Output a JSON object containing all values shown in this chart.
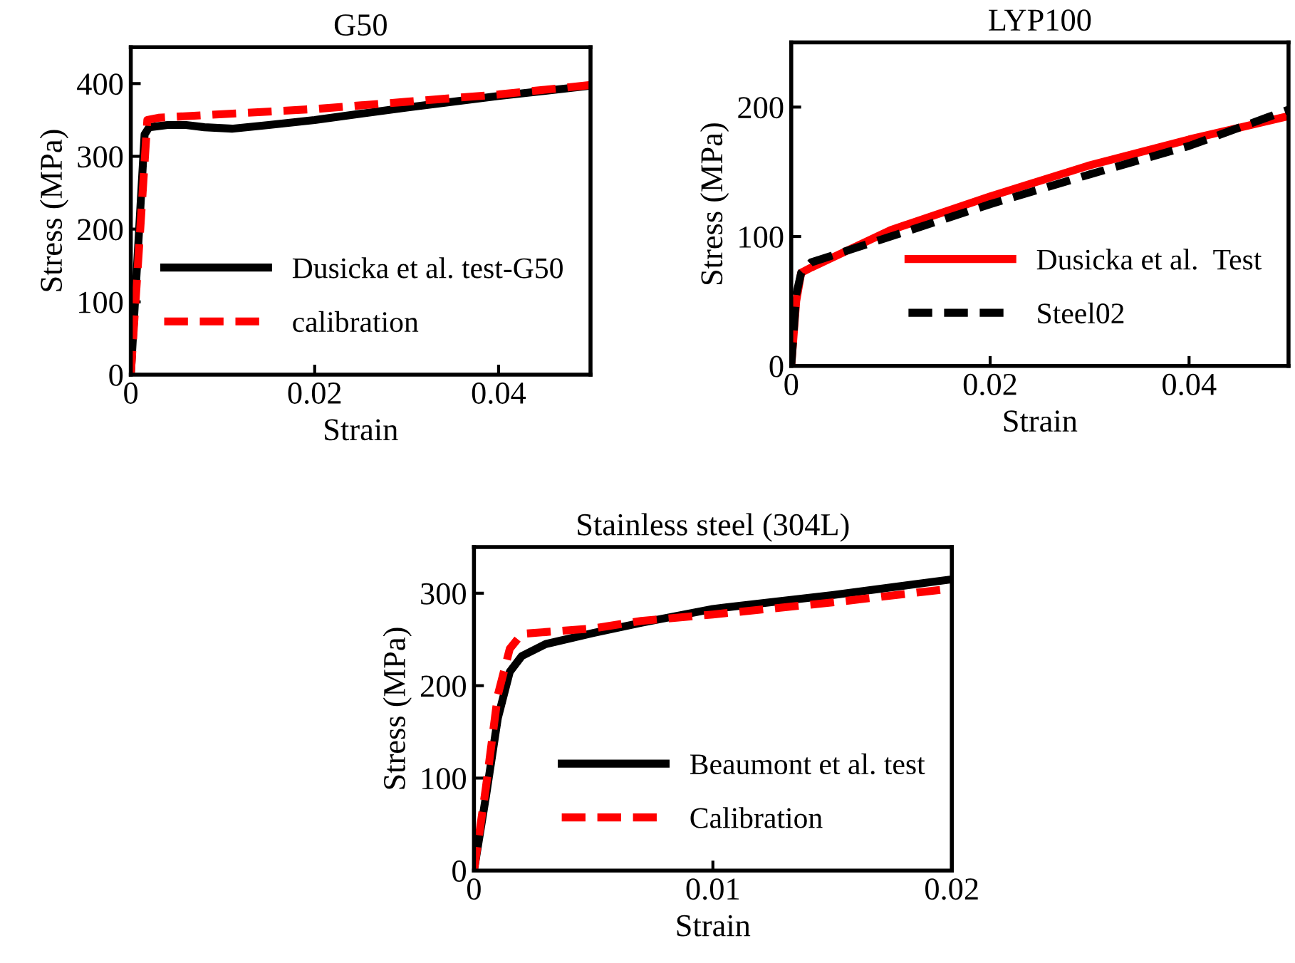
{
  "chart_data": [
    {
      "type": "line",
      "title": "G50",
      "xlabel": "Strain",
      "ylabel": "Stress (MPa)",
      "xlim": [
        0,
        0.05
      ],
      "xticks": [
        0,
        0.02,
        0.04
      ],
      "ylim": [
        0,
        450
      ],
      "yticks": [
        0,
        100,
        200,
        300,
        400
      ],
      "grid": false,
      "legend": "bottom right",
      "marker": "none",
      "series": [
        {
          "name": "Dusicka et al. test-G50",
          "color": "#000000",
          "line_style": "solid",
          "x": [
            0,
            0.0015,
            0.002,
            0.004,
            0.006,
            0.008,
            0.011,
            0.015,
            0.02,
            0.03,
            0.04,
            0.05
          ],
          "values": [
            0,
            330,
            340,
            343,
            343,
            340,
            338,
            343,
            350,
            367,
            383,
            397
          ]
        },
        {
          "name": "calibration",
          "color": "#ff0000",
          "line_style": "dashed",
          "x": [
            0,
            0.0018,
            0.003,
            0.01,
            0.02,
            0.03,
            0.04,
            0.05
          ],
          "values": [
            0,
            350,
            353,
            358,
            365,
            375,
            385,
            398
          ]
        }
      ]
    },
    {
      "type": "line",
      "title": "LYP100",
      "xlabel": "Strain",
      "ylabel": "Stress (MPa)",
      "xlim": [
        0,
        0.05
      ],
      "xticks": [
        0,
        0.02,
        0.04
      ],
      "ylim": [
        0,
        250
      ],
      "yticks": [
        0,
        100,
        200
      ],
      "grid": false,
      "legend": "bottom right",
      "marker": "none",
      "series": [
        {
          "name": "Dusicka et al.  Test",
          "color": "#ff0000",
          "line_style": "solid",
          "x": [
            0,
            0.0005,
            0.001,
            0.002,
            0.01,
            0.02,
            0.03,
            0.04,
            0.05
          ],
          "values": [
            0,
            50,
            72,
            76,
            105,
            131,
            155,
            175,
            193
          ]
        },
        {
          "name": "Steel02",
          "color": "#000000",
          "line_style": "dashed",
          "x": [
            0,
            0.0005,
            0.001,
            0.002,
            0.01,
            0.02,
            0.03,
            0.04,
            0.05
          ],
          "values": [
            0,
            55,
            72,
            80,
            100,
            125,
            148,
            170,
            198
          ]
        }
      ]
    },
    {
      "type": "line",
      "title": "Stainless steel (304L)",
      "xlabel": "Strain",
      "ylabel": "Stress (MPa)",
      "xlim": [
        0,
        0.02
      ],
      "xticks": [
        0,
        0.01,
        0.02
      ],
      "ylim": [
        0,
        350
      ],
      "yticks": [
        0,
        100,
        200,
        300
      ],
      "grid": false,
      "legend": "bottom right",
      "marker": "none",
      "series": [
        {
          "name": "Beaumont et al. test",
          "color": "#000000",
          "line_style": "solid",
          "x": [
            0,
            0.0005,
            0.001,
            0.0015,
            0.002,
            0.003,
            0.005,
            0.007,
            0.01,
            0.015,
            0.02
          ],
          "values": [
            0,
            80,
            165,
            215,
            232,
            245,
            257,
            268,
            283,
            298,
            315
          ]
        },
        {
          "name": "Calibration",
          "color": "#ff0000",
          "line_style": "dashed",
          "x": [
            0,
            0.0005,
            0.001,
            0.0015,
            0.002,
            0.003,
            0.005,
            0.007,
            0.01,
            0.015,
            0.02
          ],
          "values": [
            0,
            90,
            190,
            240,
            256,
            258,
            262,
            270,
            277,
            290,
            305
          ]
        }
      ]
    }
  ]
}
